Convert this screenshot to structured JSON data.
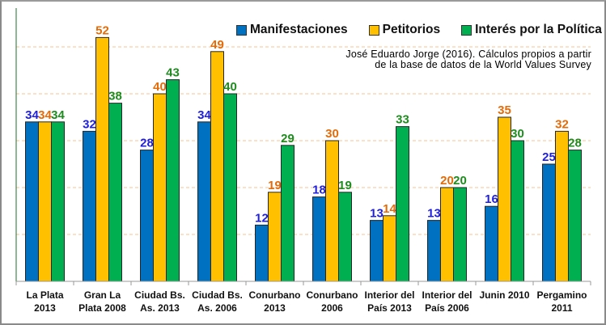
{
  "chart_data": {
    "type": "bar",
    "title": "",
    "xlabel": "",
    "ylabel": "",
    "ylim": [
      0,
      60
    ],
    "grid": true,
    "gridline_values": [
      10,
      20,
      30,
      40,
      50
    ],
    "legend_position": "top-right",
    "categories": [
      [
        "La Plata",
        "2013"
      ],
      [
        "Gran La",
        "Plata 2008"
      ],
      [
        "Ciudad Bs.",
        "As. 2013"
      ],
      [
        "Ciudad Bs.",
        "As. 2006"
      ],
      [
        "Conurbano",
        "2013"
      ],
      [
        "Conurbano",
        "2006"
      ],
      [
        "Interior del",
        "País 2013"
      ],
      [
        "Interior del",
        "País 2006"
      ],
      [
        "Junin 2010",
        ""
      ],
      [
        "Pergamino",
        "2011"
      ]
    ],
    "series": [
      {
        "name": "Manifestaciones",
        "color": "#0070C0",
        "label_color": "#1F1FE0",
        "values": [
          34,
          32,
          28,
          34,
          12,
          18,
          13,
          13,
          16,
          25
        ]
      },
      {
        "name": "Petitorios",
        "color": "#FFC000",
        "label_color": "#E36C0A",
        "values": [
          34,
          52,
          40,
          49,
          19,
          30,
          14,
          20,
          35,
          32
        ]
      },
      {
        "name": "Interés por la Política",
        "color": "#00B050",
        "label_color": "#1E8C1E",
        "values": [
          34,
          38,
          43,
          40,
          29,
          19,
          33,
          20,
          30,
          28
        ]
      }
    ],
    "annotation": [
      "José Eduardo Jorge (2016). Cálculos propios a partir",
      "de la base de datos de la World Values Survey"
    ]
  }
}
